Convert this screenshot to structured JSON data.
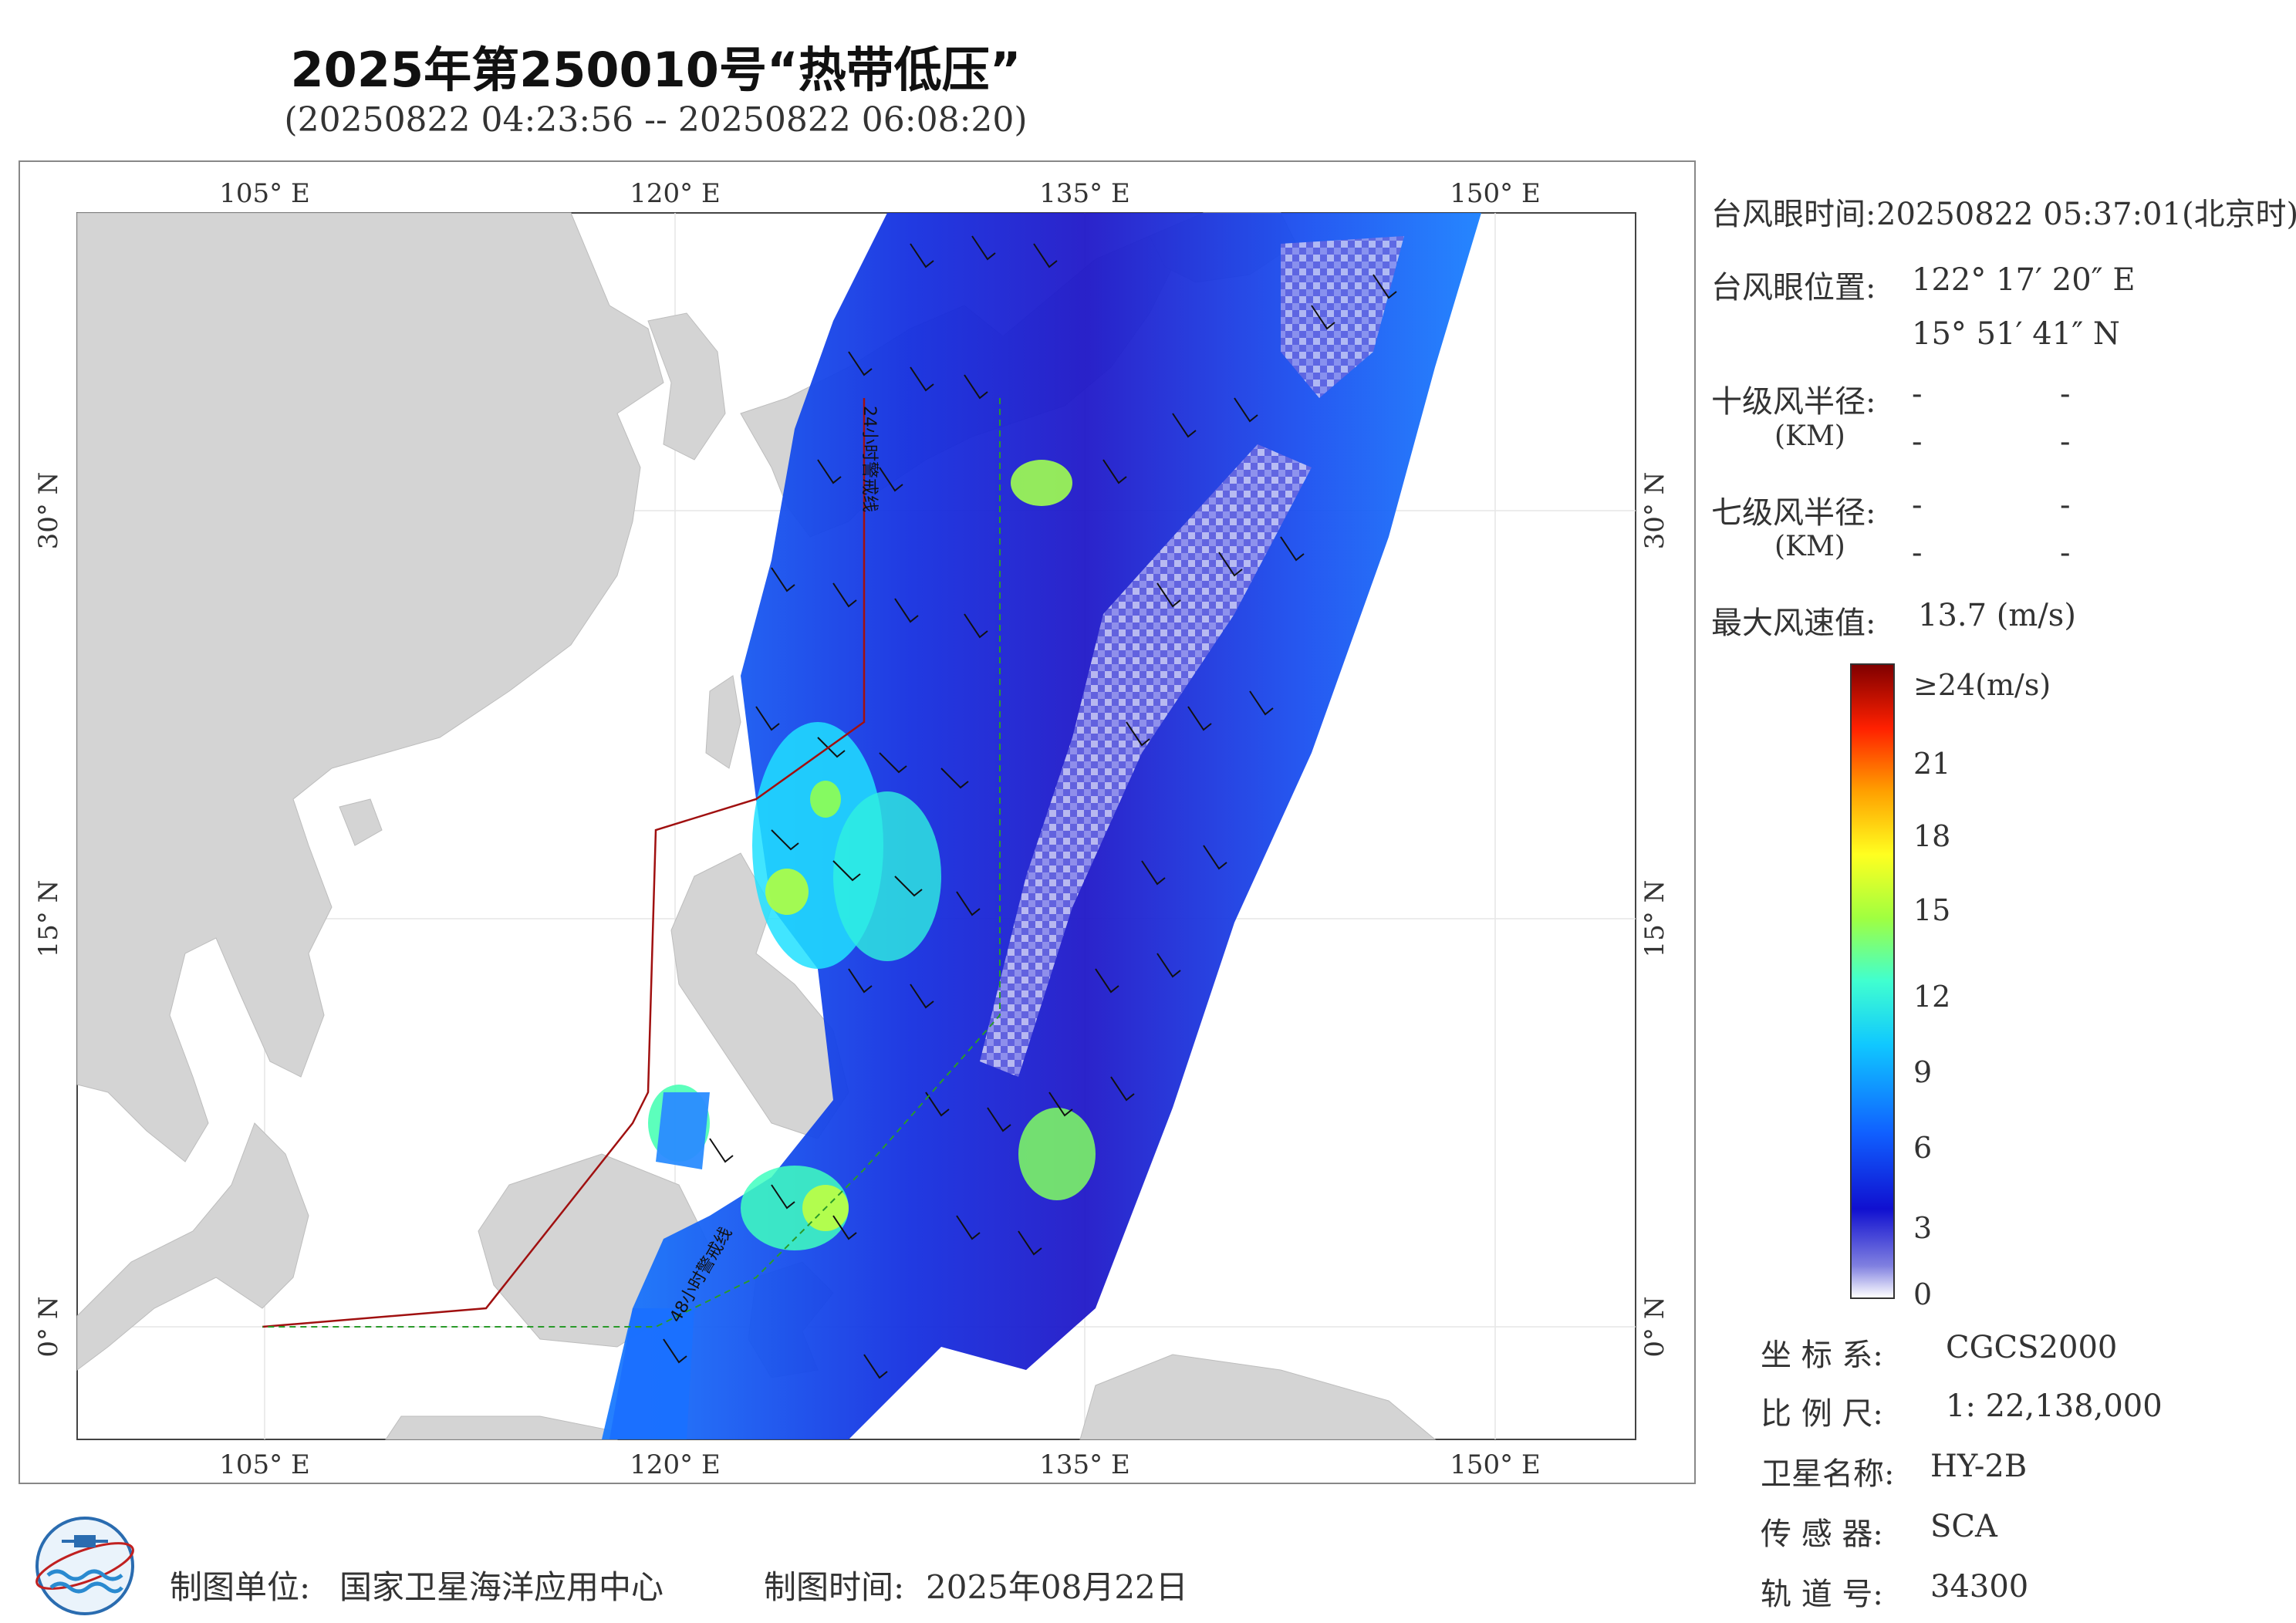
{
  "header": {
    "title": "2025年第250010号“热带低压”",
    "subtitle": "(20250822 04:23:56 -- 20250822 06:08:20)"
  },
  "map": {
    "lon_ticks": [
      "105° E",
      "120° E",
      "135° E",
      "150° E"
    ],
    "lat_ticks": [
      "30° N",
      "15° N",
      "0° N"
    ],
    "line_labels": {
      "line24": "24小时警戒线",
      "line48": "48小时警戒线"
    },
    "colors": {
      "land": "#d4d4d4",
      "sea": "#ffffff",
      "warning_line_24": "#a01010",
      "warning_line_48": "#2a9a2a"
    }
  },
  "info": {
    "eye_time_label": "台风眼时间:",
    "eye_time_value": "20250822 05:37:01(北京时)",
    "eye_pos_label": "台风眼位置:",
    "eye_lon": "122° 17′ 20″ E",
    "eye_lat": "15° 51′ 41″ N",
    "r10_label": "十级风半径:",
    "r7_label": "七级风半径:",
    "km_label": "(KM)",
    "dash": "-",
    "max_wind_label": "最大风速值:",
    "max_wind_value": "13.7  (m/s)"
  },
  "colorbar": {
    "labels": [
      "≥24(m/s)",
      "21",
      "18",
      "15",
      "12",
      "9",
      "6",
      "3",
      "0"
    ],
    "stops": [
      "#ffffff",
      "#8080e0",
      "#1010d0",
      "#1060ff",
      "#10c8ff",
      "#40ffd0",
      "#a0ff40",
      "#ffff20",
      "#ffa000",
      "#ff2000",
      "#800000"
    ]
  },
  "metadata": {
    "crs_label": "坐 标 系:",
    "crs_value": "CGCS2000",
    "scale_label": "比 例 尺:",
    "scale_value": "1: 22,138,000",
    "sat_label": "卫星名称:",
    "sat_value": "HY-2B",
    "sensor_label": "传 感 器:",
    "sensor_value": "SCA",
    "orbit_label": "轨 道 号:",
    "orbit_value": "34300"
  },
  "footer": {
    "unit_label": "制图单位:",
    "unit_value": "国家卫星海洋应用中心",
    "time_label": "制图时间:",
    "time_value": "2025年08月22日"
  }
}
